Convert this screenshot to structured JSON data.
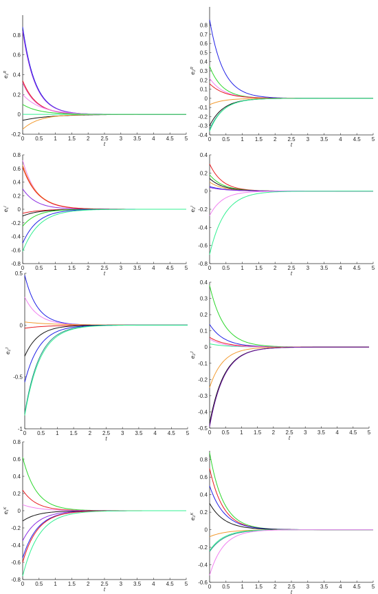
{
  "figure": {
    "layout": "4x2 grid of decaying error trajectories"
  },
  "colors": {
    "blue": "#1f1fe6",
    "violet": "#8a2be2",
    "red": "#e8191e",
    "magenta": "#e03ca6",
    "pink": "#f080f0",
    "green": "#2ad62a",
    "black": "#111111",
    "orange": "#f29a2e",
    "teal": "#2a8a8a",
    "spring": "#30f090",
    "purple": "#6a0fa0"
  },
  "chart_data": [
    {
      "type": "line",
      "ylabel": "e₁ᴿ",
      "xlabel": "t",
      "xlim": [
        0,
        5
      ],
      "ylim": [
        -0.2,
        1.0
      ],
      "xticks": [
        0,
        0.5,
        1,
        1.5,
        2,
        2.5,
        3,
        3.5,
        4,
        4.5,
        5
      ],
      "yticks": [
        -0.2,
        0,
        0.2,
        0.4,
        0.6,
        0.8
      ],
      "series": [
        {
          "color": "blue",
          "y0": 0.88,
          "k": 2.6
        },
        {
          "color": "violet",
          "y0": 0.84,
          "k": 2.6
        },
        {
          "color": "red",
          "y0": 0.34,
          "k": 2.4
        },
        {
          "color": "magenta",
          "y0": 0.32,
          "k": 2.4
        },
        {
          "color": "pink",
          "y0": 0.2,
          "k": 1.8
        },
        {
          "color": "green",
          "y0": 0.1,
          "k": 2.0
        },
        {
          "color": "black",
          "y0": -0.06,
          "k": 1.2
        },
        {
          "color": "orange",
          "y0": -0.15,
          "k": 2.0
        },
        {
          "color": "spring",
          "y0": 0.0,
          "k": 2.0
        }
      ]
    },
    {
      "type": "line",
      "ylabel": "e₂ᴿ",
      "xlabel": "t",
      "xlim": [
        0,
        5
      ],
      "ylim": [
        -0.4,
        1.0
      ],
      "xticks": [
        0,
        0.5,
        1,
        1.5,
        2,
        2.5,
        3,
        3.5,
        4,
        4.5,
        5
      ],
      "yticks": [
        -0.4,
        -0.3,
        -0.2,
        -0.1,
        0,
        0.1,
        0.2,
        0.3,
        0.4,
        0.5,
        0.6,
        0.7,
        0.8
      ],
      "series": [
        {
          "color": "blue",
          "y0": 0.86,
          "k": 2.4
        },
        {
          "color": "green",
          "y0": 0.35,
          "k": 2.6
        },
        {
          "color": "pink",
          "y0": 0.22,
          "k": 2.4
        },
        {
          "color": "red",
          "y0": 0.16,
          "k": 2.2
        },
        {
          "color": "orange",
          "y0": -0.07,
          "k": 2.4
        },
        {
          "color": "black",
          "y0": -0.3,
          "k": 2.4
        },
        {
          "color": "teal",
          "y0": -0.34,
          "k": 2.4
        },
        {
          "color": "spring",
          "y0": -0.36,
          "k": 2.5
        }
      ]
    },
    {
      "type": "line",
      "ylabel": "e₁ᴵ",
      "xlabel": "t",
      "xlim": [
        0,
        5
      ],
      "ylim": [
        -0.8,
        0.8
      ],
      "xticks": [
        0,
        0.5,
        1,
        1.5,
        2,
        2.5,
        3,
        3.5,
        4,
        4.5,
        5
      ],
      "yticks": [
        -0.8,
        -0.6,
        -0.4,
        -0.2,
        0,
        0.2,
        0.4,
        0.6,
        0.8
      ],
      "series": [
        {
          "color": "pink",
          "y0": 0.72,
          "k": 2.4
        },
        {
          "color": "orange",
          "y0": 0.65,
          "k": 2.2
        },
        {
          "color": "red",
          "y0": 0.62,
          "k": 2.2
        },
        {
          "color": "violet",
          "y0": 0.3,
          "k": 2.4
        },
        {
          "color": "red",
          "y0": -0.06,
          "k": 2.0
        },
        {
          "color": "black",
          "y0": -0.1,
          "k": 2.0
        },
        {
          "color": "green",
          "y0": -0.25,
          "k": 2.4
        },
        {
          "color": "blue",
          "y0": -0.5,
          "k": 2.2
        },
        {
          "color": "spring",
          "y0": -0.62,
          "k": 2.0
        }
      ]
    },
    {
      "type": "line",
      "ylabel": "e₂ᴵ",
      "xlabel": "t",
      "xlim": [
        0,
        5
      ],
      "ylim": [
        -0.8,
        0.4
      ],
      "xticks": [
        0,
        0.5,
        1,
        1.5,
        2,
        2.5,
        3,
        3.5,
        4,
        4.5,
        5
      ],
      "yticks": [
        -0.8,
        -0.6,
        -0.4,
        -0.2,
        0,
        0.2,
        0.4
      ],
      "series": [
        {
          "color": "red",
          "y0": 0.3,
          "k": 2.6
        },
        {
          "color": "green",
          "y0": 0.18,
          "k": 2.4
        },
        {
          "color": "black",
          "y0": 0.14,
          "k": 2.4
        },
        {
          "color": "orange",
          "y0": 0.1,
          "k": 2.4
        },
        {
          "color": "blue",
          "y0": 0.05,
          "k": 2.0
        },
        {
          "color": "violet",
          "y0": 0.04,
          "k": 2.0
        },
        {
          "color": "pink",
          "y0": -0.27,
          "k": 2.6
        },
        {
          "color": "spring",
          "y0": -0.7,
          "k": 2.2
        }
      ]
    },
    {
      "type": "line",
      "ylabel": "e₁ᴶ",
      "xlabel": "t",
      "xlim": [
        0,
        5
      ],
      "ylim": [
        -1.0,
        0.5
      ],
      "xticks": [
        0,
        0.5,
        1,
        1.5,
        2,
        2.5,
        3,
        3.5,
        4,
        4.5,
        5
      ],
      "yticks": [
        -1,
        -0.5,
        0,
        0.5
      ],
      "series": [
        {
          "color": "blue",
          "y0": 0.48,
          "k": 2.6
        },
        {
          "color": "pink",
          "y0": 0.27,
          "k": 2.4
        },
        {
          "color": "orange",
          "y0": 0.03,
          "k": 1.2
        },
        {
          "color": "red",
          "y0": -0.03,
          "k": 1.5
        },
        {
          "color": "black",
          "y0": -0.3,
          "k": 2.4
        },
        {
          "color": "blue",
          "y0": -0.55,
          "k": 2.2
        },
        {
          "color": "teal",
          "y0": -0.85,
          "k": 2.2
        },
        {
          "color": "spring",
          "y0": -0.87,
          "k": 2.1
        }
      ]
    },
    {
      "type": "line",
      "ylabel": "e₂ᴶ",
      "xlabel": "t",
      "xlim": [
        0,
        5
      ],
      "ylim": [
        -0.5,
        0.4
      ],
      "xticks": [
        0,
        0.5,
        1,
        1.5,
        2,
        2.5,
        3,
        3.5,
        4,
        4.5,
        5
      ],
      "yticks": [
        -0.5,
        -0.4,
        -0.3,
        -0.2,
        -0.1,
        0,
        0.1,
        0.2,
        0.3,
        0.4
      ],
      "series": [
        {
          "color": "green",
          "y0": 0.38,
          "k": 2.2
        },
        {
          "color": "blue",
          "y0": 0.14,
          "k": 2.2
        },
        {
          "color": "red",
          "y0": 0.06,
          "k": 2.0
        },
        {
          "color": "spring",
          "y0": 0.02,
          "k": 2.0
        },
        {
          "color": "pink",
          "y0": 0.05,
          "k": 2.4
        },
        {
          "color": "orange",
          "y0": -0.25,
          "k": 2.4
        },
        {
          "color": "black",
          "y0": -0.47,
          "k": 2.2
        },
        {
          "color": "purple",
          "y0": -0.49,
          "k": 2.2
        }
      ]
    },
    {
      "type": "line",
      "ylabel": "e₁ᴷ",
      "xlabel": "t",
      "xlim": [
        0,
        5
      ],
      "ylim": [
        -0.8,
        0.8
      ],
      "xticks": [
        0,
        0.5,
        1,
        1.5,
        2,
        2.5,
        3,
        3.5,
        4,
        4.5,
        5
      ],
      "yticks": [
        -0.8,
        -0.6,
        -0.4,
        -0.2,
        0,
        0.2,
        0.4,
        0.6,
        0.8
      ],
      "series": [
        {
          "color": "green",
          "y0": 0.62,
          "k": 2.4
        },
        {
          "color": "red",
          "y0": 0.24,
          "k": 2.4
        },
        {
          "color": "pink",
          "y0": 0.07,
          "k": 2.0
        },
        {
          "color": "black",
          "y0": -0.12,
          "k": 2.2
        },
        {
          "color": "violet",
          "y0": -0.35,
          "k": 2.2
        },
        {
          "color": "blue",
          "y0": -0.55,
          "k": 2.2
        },
        {
          "color": "red",
          "y0": -0.6,
          "k": 2.2
        },
        {
          "color": "spring",
          "y0": -0.76,
          "k": 2.0
        }
      ]
    },
    {
      "type": "line",
      "ylabel": "e₂ᴷ",
      "xlabel": "t",
      "xlim": [
        0,
        5
      ],
      "ylim": [
        -0.6,
        0.9
      ],
      "xticks": [
        0,
        0.5,
        1,
        1.5,
        2,
        2.5,
        3,
        3.5,
        4,
        4.5,
        5
      ],
      "yticks": [
        -0.6,
        -0.4,
        -0.2,
        0,
        0.2,
        0.4,
        0.6,
        0.8
      ],
      "series": [
        {
          "color": "green",
          "y0": 0.88,
          "k": 2.4
        },
        {
          "color": "red",
          "y0": 0.7,
          "k": 2.4
        },
        {
          "color": "blue",
          "y0": 0.5,
          "k": 2.2
        },
        {
          "color": "black",
          "y0": 0.3,
          "k": 2.2
        },
        {
          "color": "orange",
          "y0": -0.08,
          "k": 2.0
        },
        {
          "color": "teal",
          "y0": -0.25,
          "k": 2.2
        },
        {
          "color": "spring",
          "y0": -0.24,
          "k": 2.4
        },
        {
          "color": "pink",
          "y0": -0.52,
          "k": 2.4
        }
      ]
    }
  ]
}
